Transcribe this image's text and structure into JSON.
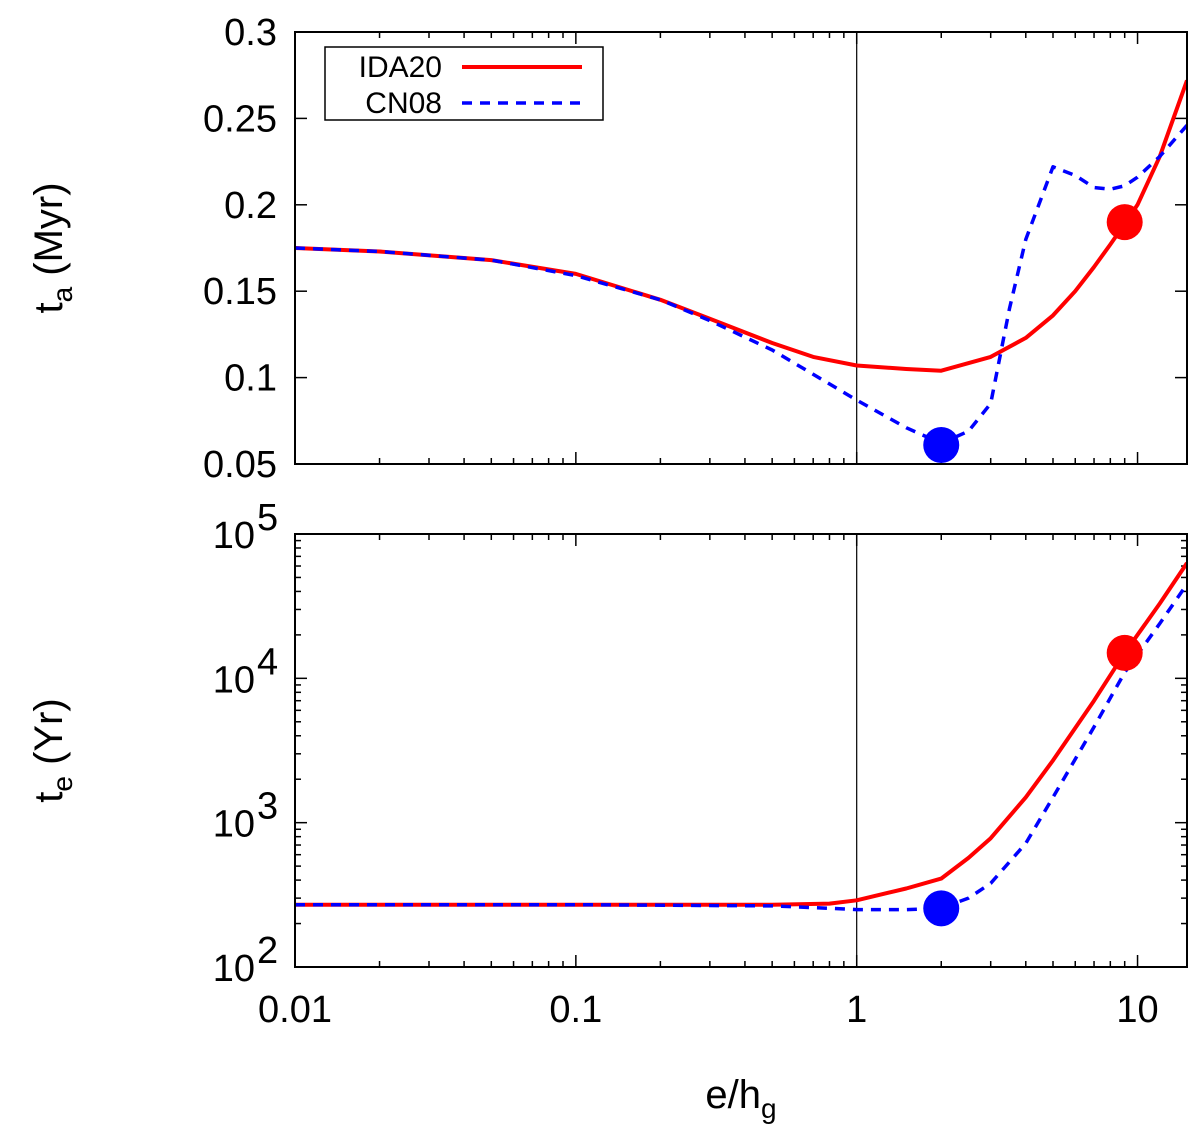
{
  "chart_data": [
    {
      "type": "line",
      "panel": "top",
      "ylabel": {
        "main": "t",
        "sub": "a",
        "rest": " (Myr)"
      },
      "xscale": "log",
      "yscale": "linear",
      "xlim": [
        0.01,
        15
      ],
      "ylim": [
        0.05,
        0.3
      ],
      "yticks": [
        {
          "value": 0.05,
          "label": "0.05"
        },
        {
          "value": 0.1,
          "label": "0.1"
        },
        {
          "value": 0.15,
          "label": "0.15"
        },
        {
          "value": 0.2,
          "label": "0.2"
        },
        {
          "value": 0.25,
          "label": "0.25"
        },
        {
          "value": 0.3,
          "label": "0.3"
        }
      ],
      "vline_x": 1,
      "legend": {
        "position": "top-left",
        "entries": [
          "IDA20",
          "CN08"
        ]
      },
      "series": [
        {
          "name": "IDA20",
          "color": "#ff0000",
          "style": "solid",
          "x": [
            0.01,
            0.02,
            0.05,
            0.1,
            0.2,
            0.3,
            0.5,
            0.7,
            1.0,
            1.5,
            2.0,
            3.0,
            4.0,
            5.0,
            6.0,
            7.0,
            8.0,
            9.0,
            10.0,
            12.0,
            15.0
          ],
          "y": [
            0.175,
            0.173,
            0.168,
            0.16,
            0.145,
            0.134,
            0.12,
            0.112,
            0.107,
            0.105,
            0.104,
            0.112,
            0.123,
            0.136,
            0.15,
            0.164,
            0.177,
            0.189,
            0.2,
            0.228,
            0.272
          ]
        },
        {
          "name": "CN08",
          "color": "#0000ff",
          "style": "dashed",
          "x": [
            0.01,
            0.02,
            0.05,
            0.1,
            0.2,
            0.3,
            0.5,
            1.0,
            1.5,
            2.0,
            2.5,
            3.0,
            3.5,
            4.0,
            5.0,
            6.0,
            7.0,
            8.0,
            9.0,
            10.0,
            12.0,
            15.0
          ],
          "y": [
            0.175,
            0.173,
            0.168,
            0.159,
            0.145,
            0.133,
            0.116,
            0.087,
            0.071,
            0.062,
            0.069,
            0.085,
            0.14,
            0.18,
            0.222,
            0.217,
            0.21,
            0.209,
            0.211,
            0.216,
            0.228,
            0.246
          ]
        }
      ],
      "markers": [
        {
          "series": "CN08",
          "x": 2.0,
          "y": 0.061,
          "color": "#0000ff"
        },
        {
          "series": "IDA20",
          "x": 9.0,
          "y": 0.19,
          "color": "#ff0000"
        }
      ]
    },
    {
      "type": "line",
      "panel": "bottom",
      "ylabel": {
        "main": "t",
        "sub": "e",
        "rest": " (Yr)"
      },
      "xlabel": {
        "main": "e/h",
        "sub": "g"
      },
      "xscale": "log",
      "yscale": "log",
      "xlim": [
        0.01,
        15
      ],
      "ylim": [
        100,
        100000
      ],
      "yticks": [
        {
          "value": 100,
          "base": "10",
          "exp": "2"
        },
        {
          "value": 1000,
          "base": "10",
          "exp": "3"
        },
        {
          "value": 10000,
          "base": "10",
          "exp": "4"
        },
        {
          "value": 100000,
          "base": "10",
          "exp": "5"
        }
      ],
      "xticks": [
        {
          "value": 0.01,
          "label": "0.01"
        },
        {
          "value": 0.1,
          "label": "0.1"
        },
        {
          "value": 1,
          "label": "1"
        },
        {
          "value": 10,
          "label": "10"
        }
      ],
      "vline_x": 1,
      "series": [
        {
          "name": "IDA20",
          "color": "#ff0000",
          "style": "solid",
          "x": [
            0.01,
            0.1,
            0.5,
            0.8,
            1.0,
            1.5,
            2.0,
            2.5,
            3.0,
            4.0,
            5.0,
            7.0,
            9.0,
            12.0,
            15.0
          ],
          "y": [
            270,
            270,
            270,
            275,
            290,
            350,
            410,
            570,
            780,
            1500,
            2700,
            7000,
            15000,
            33000,
            63000
          ]
        },
        {
          "name": "CN08",
          "color": "#0000ff",
          "style": "dashed",
          "x": [
            0.01,
            0.1,
            0.5,
            0.8,
            1.0,
            1.5,
            2.0,
            2.5,
            3.0,
            4.0,
            5.0,
            7.0,
            9.0,
            12.0,
            15.0
          ],
          "y": [
            270,
            270,
            265,
            255,
            250,
            250,
            255,
            300,
            380,
            720,
            1500,
            4600,
            11000,
            24000,
            45000
          ]
        }
      ],
      "markers": [
        {
          "series": "CN08",
          "x": 2.0,
          "y": 255,
          "color": "#0000ff"
        },
        {
          "series": "IDA20",
          "x": 9.0,
          "y": 15000,
          "color": "#ff0000"
        }
      ]
    }
  ]
}
